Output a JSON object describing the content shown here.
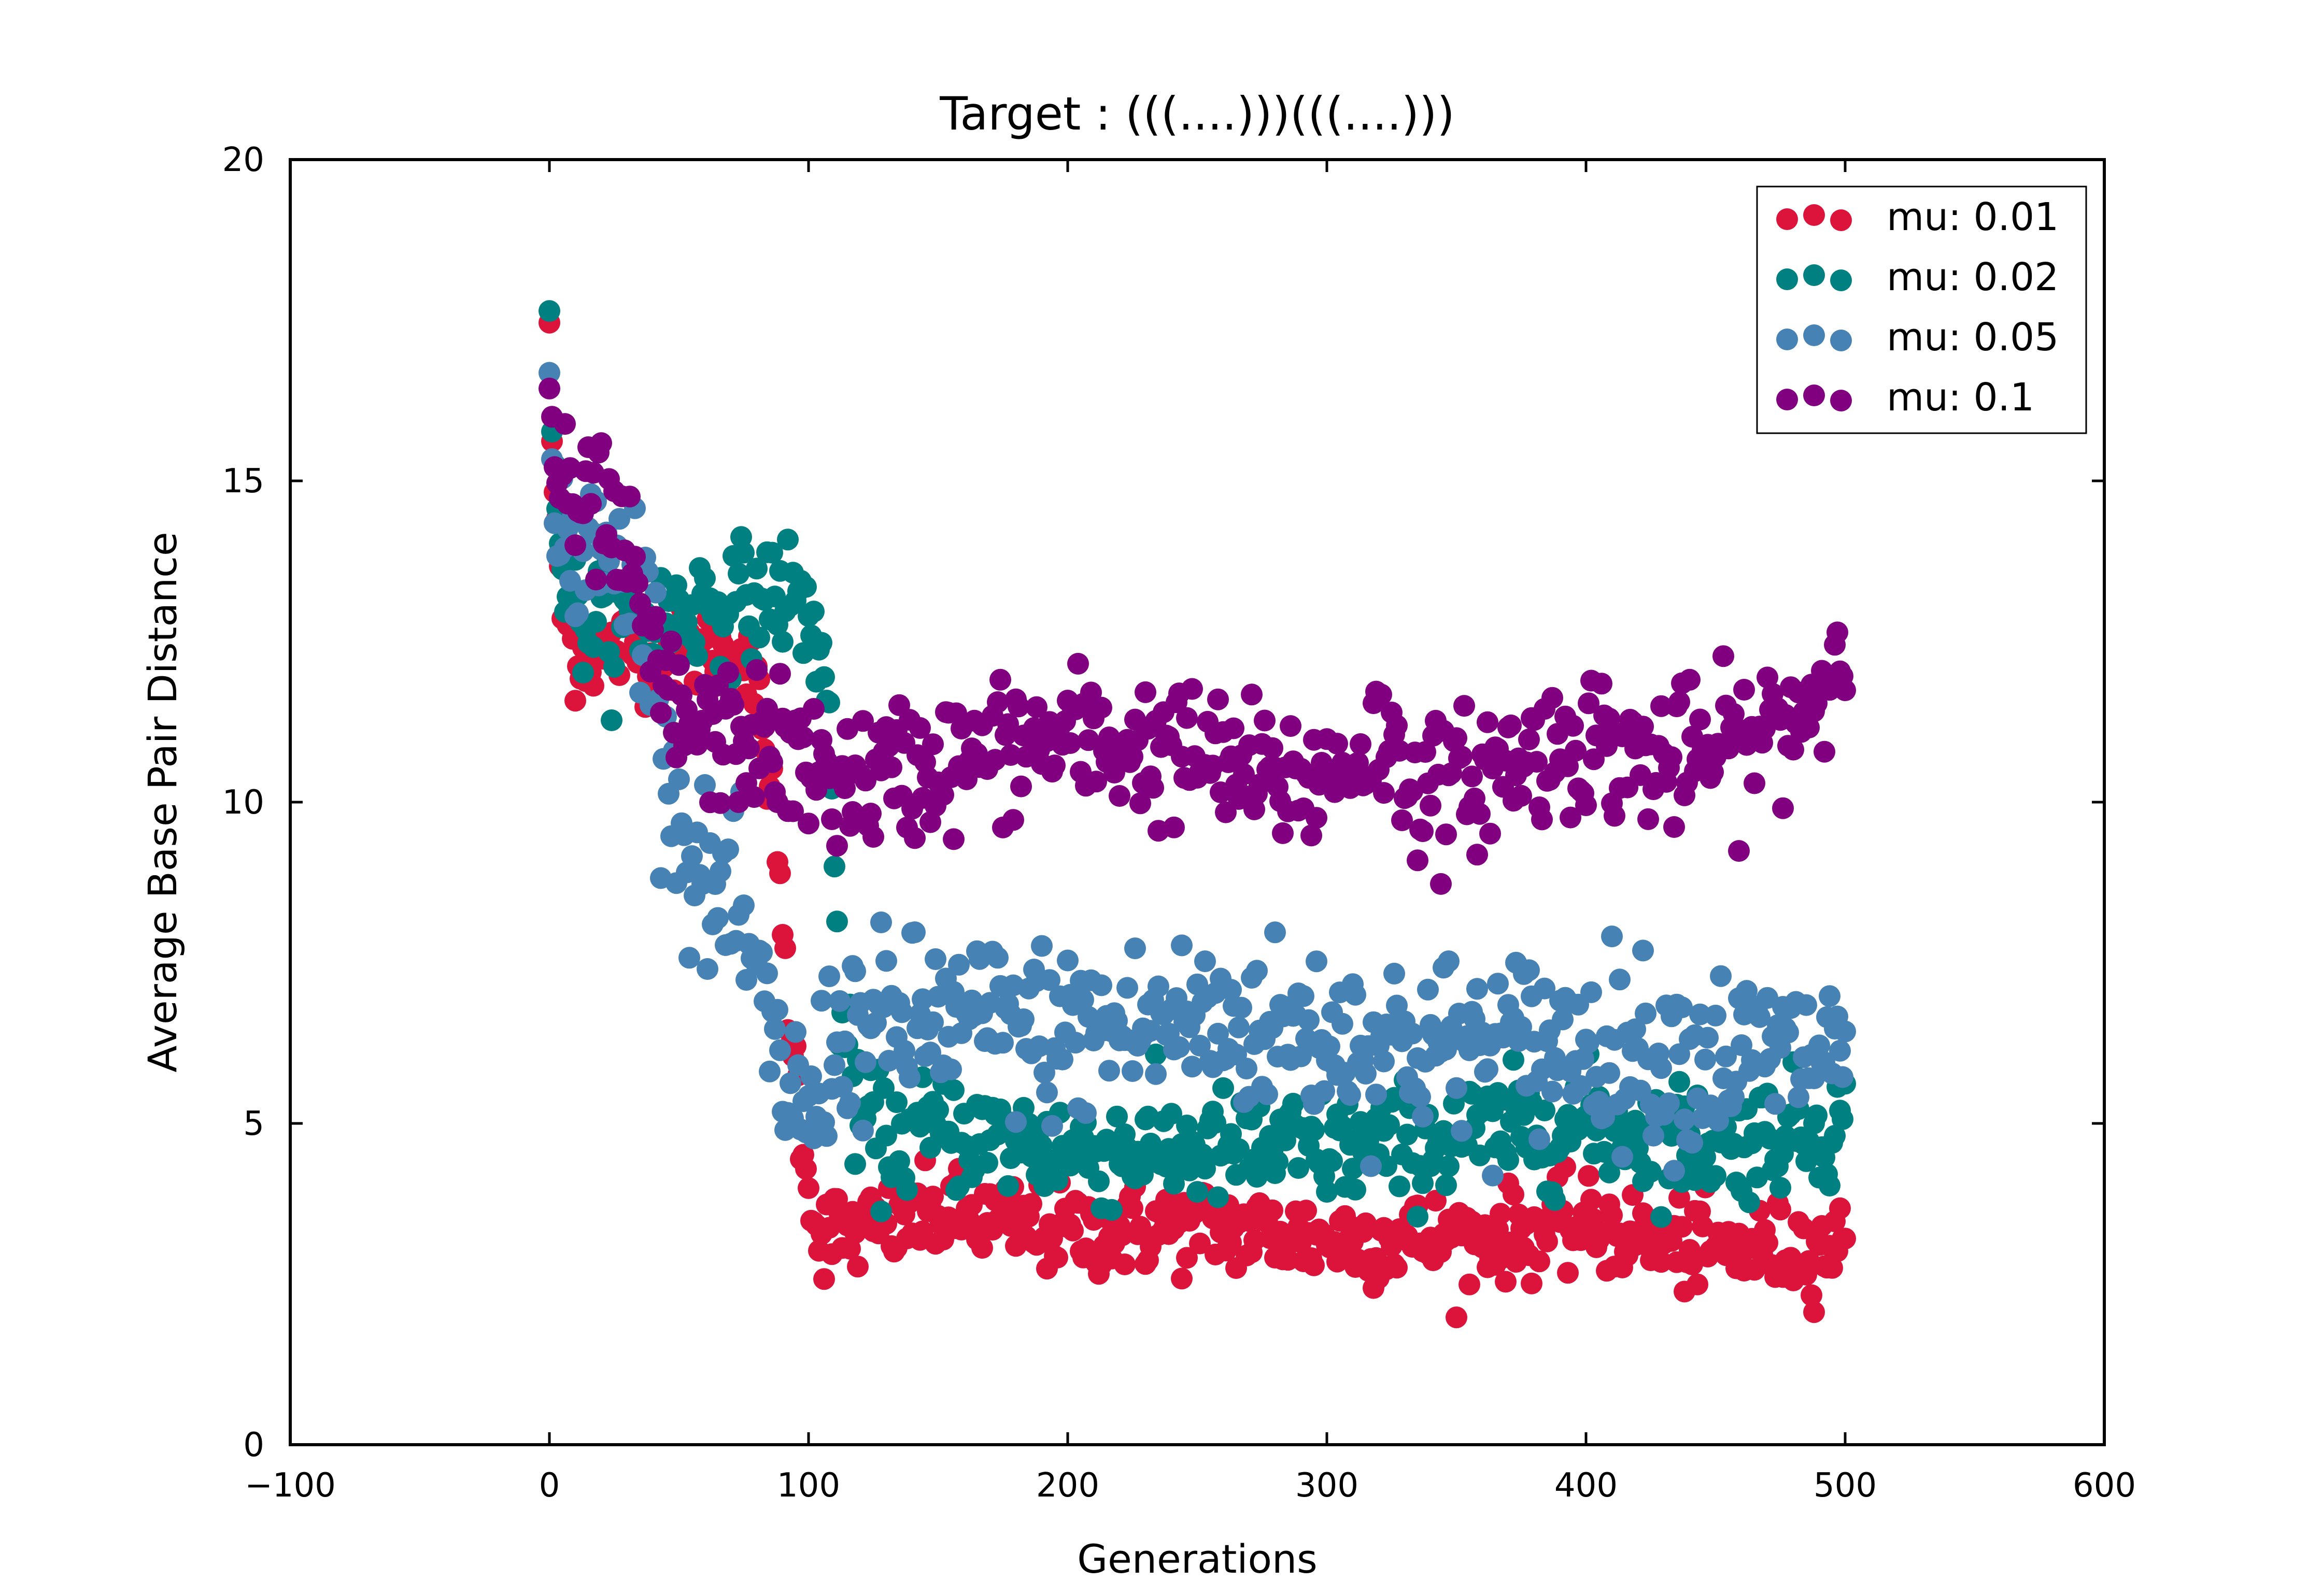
{
  "chart_data": {
    "type": "scatter",
    "title": "Target : (((....)))(((....)))",
    "xlabel": "Generations",
    "ylabel": "Average Base Pair Distance",
    "xlim": [
      -100,
      600
    ],
    "ylim": [
      0,
      20
    ],
    "xticks": [
      -100,
      0,
      100,
      200,
      300,
      400,
      500,
      600
    ],
    "yticks": [
      0,
      5,
      10,
      15,
      20
    ],
    "xtick_labels": [
      "−100",
      "0",
      "100",
      "200",
      "300",
      "400",
      "500",
      "600"
    ],
    "ytick_labels": [
      "0",
      "5",
      "10",
      "15",
      "20"
    ],
    "grid": false,
    "legend_position": "top-right",
    "generations": 500,
    "series": [
      {
        "name": "mu: 0.01",
        "color": "#dc143c",
        "key_points": [
          [
            0,
            17.5
          ],
          [
            1,
            15.5
          ],
          [
            5,
            13.0
          ],
          [
            10,
            12.3
          ],
          [
            20,
            12.3
          ],
          [
            30,
            12.4
          ],
          [
            40,
            12.4
          ],
          [
            50,
            12.3
          ],
          [
            60,
            12.3
          ],
          [
            70,
            12.4
          ],
          [
            78,
            12.0
          ],
          [
            83,
            11.0
          ],
          [
            87,
            9.6
          ],
          [
            90,
            8.0
          ],
          [
            93,
            6.5
          ],
          [
            96,
            5.5
          ],
          [
            98,
            4.8
          ],
          [
            100,
            4.2
          ],
          [
            103,
            3.3
          ],
          [
            120,
            3.3
          ],
          [
            150,
            3.6
          ],
          [
            200,
            3.3
          ],
          [
            250,
            3.4
          ],
          [
            300,
            3.2
          ],
          [
            350,
            3.2
          ],
          [
            400,
            3.4
          ],
          [
            450,
            3.0
          ],
          [
            500,
            3.1
          ]
        ],
        "noise": 0.35
      },
      {
        "name": "mu: 0.02",
        "color": "#008080",
        "key_points": [
          [
            0,
            17.8
          ],
          [
            1,
            16.0
          ],
          [
            4,
            14.0
          ],
          [
            8,
            13.2
          ],
          [
            15,
            12.8
          ],
          [
            30,
            12.8
          ],
          [
            45,
            12.9
          ],
          [
            60,
            13.1
          ],
          [
            70,
            13.1
          ],
          [
            80,
            13.2
          ],
          [
            90,
            13.3
          ],
          [
            100,
            12.9
          ],
          [
            105,
            12.4
          ],
          [
            108,
            11.0
          ],
          [
            112,
            7.0
          ],
          [
            118,
            5.2
          ],
          [
            130,
            4.7
          ],
          [
            150,
            4.9
          ],
          [
            200,
            4.6
          ],
          [
            250,
            4.6
          ],
          [
            300,
            4.6
          ],
          [
            350,
            4.8
          ],
          [
            400,
            5.0
          ],
          [
            450,
            4.7
          ],
          [
            500,
            5.0
          ]
        ],
        "noise": 0.45
      },
      {
        "name": "mu: 0.05",
        "color": "#4682b4",
        "key_points": [
          [
            0,
            16.6
          ],
          [
            1,
            15.0
          ],
          [
            4,
            14.0
          ],
          [
            15,
            13.8
          ],
          [
            25,
            13.7
          ],
          [
            35,
            13.4
          ],
          [
            42,
            12.0
          ],
          [
            45,
            10.9
          ],
          [
            48,
            10.2
          ],
          [
            53,
            9.3
          ],
          [
            60,
            8.6
          ],
          [
            70,
            8.4
          ],
          [
            78,
            7.5
          ],
          [
            85,
            6.2
          ],
          [
            92,
            5.6
          ],
          [
            100,
            5.0
          ],
          [
            110,
            6.4
          ],
          [
            150,
            6.6
          ],
          [
            200,
            6.4
          ],
          [
            250,
            6.6
          ],
          [
            300,
            6.4
          ],
          [
            350,
            6.2
          ],
          [
            400,
            6.3
          ],
          [
            450,
            6.0
          ],
          [
            500,
            6.2
          ]
        ],
        "noise": 0.7
      },
      {
        "name": "mu: 0.1",
        "color": "#800080",
        "key_points": [
          [
            0,
            16.6
          ],
          [
            1,
            15.8
          ],
          [
            3,
            15.0
          ],
          [
            6,
            14.6
          ],
          [
            15,
            14.4
          ],
          [
            20,
            14.6
          ],
          [
            28,
            13.8
          ],
          [
            35,
            13.0
          ],
          [
            40,
            12.1
          ],
          [
            50,
            11.3
          ],
          [
            60,
            11.0
          ],
          [
            80,
            11.0
          ],
          [
            100,
            10.5
          ],
          [
            120,
            10.3
          ],
          [
            150,
            10.6
          ],
          [
            200,
            11.0
          ],
          [
            250,
            10.7
          ],
          [
            280,
            10.3
          ],
          [
            300,
            10.4
          ],
          [
            320,
            11.0
          ],
          [
            340,
            10.1
          ],
          [
            370,
            10.6
          ],
          [
            400,
            11.0
          ],
          [
            430,
            10.6
          ],
          [
            460,
            10.9
          ],
          [
            480,
            11.3
          ],
          [
            500,
            12.3
          ]
        ],
        "noise": 0.55
      }
    ]
  }
}
